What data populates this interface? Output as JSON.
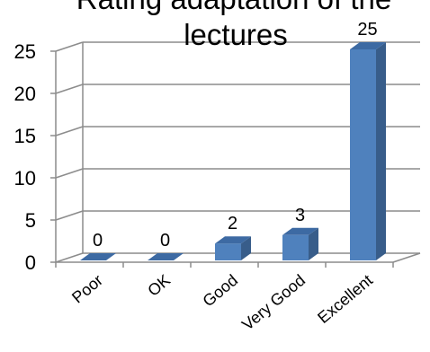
{
  "chart_data": {
    "type": "bar",
    "title_lines": [
      "Rating adaptation of the",
      "lectures"
    ],
    "categories": [
      "Poor",
      "OK",
      "Good",
      "Very Good",
      "Excellent"
    ],
    "values": [
      0,
      0,
      2,
      3,
      25
    ],
    "ylim": [
      0,
      25
    ],
    "yticks": [
      0,
      5,
      10,
      15,
      20,
      25
    ],
    "grid": true,
    "legend": "none",
    "bar_color": "#4F81BD",
    "bar_side_color": "#385D8A",
    "bar_top_color": "#3D6AA3"
  }
}
